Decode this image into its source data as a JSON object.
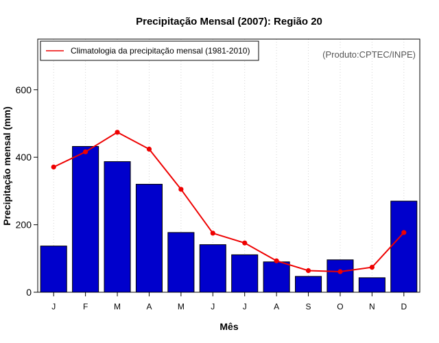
{
  "chart_data": {
    "type": "bar",
    "title": "Precipitação Mensal (2007): Região 20",
    "xlabel": "Mês",
    "ylabel": "Precipitação mensal (mm)",
    "categories": [
      "J",
      "F",
      "M",
      "A",
      "M",
      "J",
      "J",
      "A",
      "S",
      "O",
      "N",
      "D"
    ],
    "ylim": [
      0,
      750
    ],
    "yticks": [
      0,
      200,
      400,
      600
    ],
    "grid": "vertical dotted lines",
    "series": [
      {
        "name": "Precipitação mensal (2007)",
        "type": "bar",
        "color": "#0000cc",
        "values": [
          137,
          432,
          387,
          320,
          177,
          141,
          111,
          90,
          47,
          96,
          43,
          270
        ]
      },
      {
        "name": "Climatologia da precipitação mensal (1981-2010)",
        "type": "line",
        "color": "#ee0000",
        "values": [
          371,
          416,
          474,
          424,
          305,
          175,
          146,
          93,
          64,
          61,
          74,
          177
        ]
      }
    ],
    "legend": {
      "position": "top-left",
      "entries": [
        "Climatologia da precipitação mensal (1981-2010)"
      ]
    },
    "annotation": "(Produto:CPTEC/INPE)"
  }
}
